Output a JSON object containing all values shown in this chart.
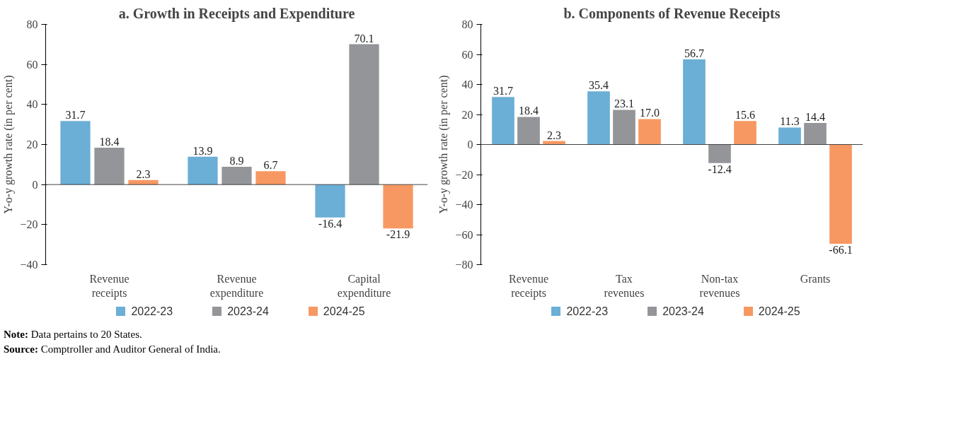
{
  "chart_data": [
    {
      "type": "bar",
      "title": "a. Growth in Receipts and Expenditure",
      "ylabel": "Y-o-y growth rate (in per cent)",
      "categories": [
        "Revenue receipts",
        "Revenue expenditure",
        "Capital expenditure"
      ],
      "series": [
        {
          "name": "2022-23",
          "color": "#6baed6",
          "values": [
            31.7,
            13.9,
            -16.4
          ]
        },
        {
          "name": "2023-24",
          "color": "#939598",
          "values": [
            18.4,
            8.9,
            70.1
          ]
        },
        {
          "name": "2024-25",
          "color": "#f79862",
          "values": [
            2.3,
            6.7,
            -21.9
          ]
        }
      ],
      "ylim": [
        -40,
        80
      ],
      "yticks": [
        -40,
        -20,
        0,
        20,
        40,
        60,
        80
      ],
      "data_labels": true,
      "legend": "bottom",
      "annotations": [
        "Note: Data pertains to 20 States.",
        "Source: Comptroller and Auditor General of India."
      ]
    },
    {
      "type": "bar",
      "title": "b. Components of Revenue Receipts",
      "ylabel": "Y-o-y growth rate (in per cent)",
      "categories": [
        "Revenue receipts",
        "Tax revenues",
        "Non-tax revenues",
        "Grants"
      ],
      "series": [
        {
          "name": "2022-23",
          "color": "#6baed6",
          "values": [
            31.7,
            35.4,
            56.7,
            11.3
          ],
          "value_labels": [
            "31.7",
            "35.4",
            "56.7",
            "11.3"
          ]
        },
        {
          "name": "2023-24",
          "color": "#939598",
          "values": [
            18.4,
            23.1,
            -12.4,
            14.4
          ],
          "value_labels": [
            "18.4",
            "23.1",
            "-12.4",
            "14.4"
          ]
        },
        {
          "name": "2024-25",
          "color": "#f79862",
          "values": [
            2.3,
            17.0,
            15.6,
            -66.1
          ],
          "value_labels": [
            "2.3",
            "17.0",
            "15.6",
            "-66.1"
          ]
        }
      ],
      "ylim": [
        -80,
        80
      ],
      "yticks": [
        -80,
        -60,
        -40,
        -20,
        0,
        20,
        40,
        60,
        80
      ],
      "legend": "bottom"
    }
  ]
}
